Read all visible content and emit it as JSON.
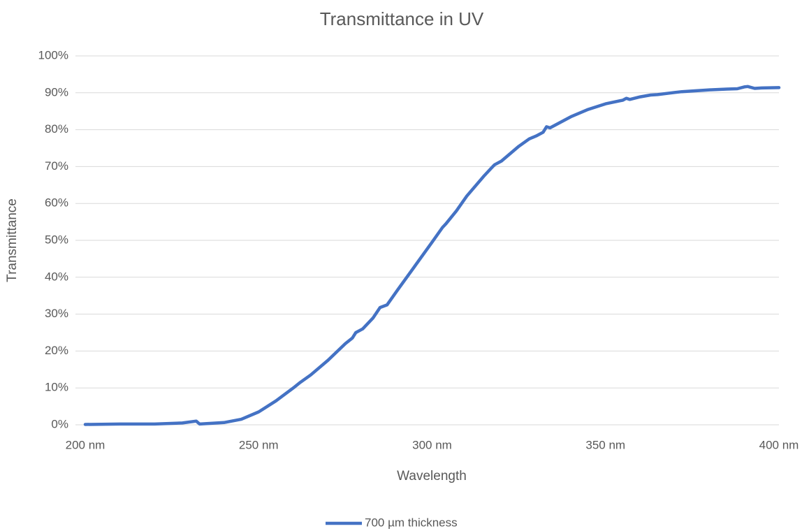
{
  "chart_data": {
    "type": "line",
    "title": "Transmittance in UV",
    "x_label": "Wavelength",
    "y_label": "Transmittance",
    "x": [
      200,
      210,
      220,
      228,
      232,
      233,
      240,
      245,
      250,
      255,
      260,
      262,
      265,
      270,
      275,
      277,
      278,
      280,
      283,
      285,
      287,
      290,
      295,
      300,
      303,
      304,
      307,
      310,
      315,
      317,
      318,
      320,
      325,
      328,
      330,
      332,
      333,
      334,
      340,
      345,
      350,
      355,
      356,
      357,
      360,
      363,
      365,
      370,
      372,
      375,
      380,
      385,
      388,
      390,
      391,
      393,
      395,
      400
    ],
    "series": [
      {
        "name": "700 µm thickness",
        "color": "#4472c4",
        "values": [
          0.1,
          0.2,
          0.2,
          0.5,
          1.0,
          0.2,
          0.6,
          1.5,
          3.5,
          6.5,
          10,
          11.5,
          13.5,
          17.5,
          22,
          23.5,
          25,
          26,
          29,
          31.8,
          32.5,
          36.5,
          43,
          49.5,
          53.5,
          54.5,
          58,
          62,
          67.5,
          69.5,
          70.5,
          71.5,
          75.5,
          77.5,
          78.3,
          79.3,
          80.8,
          80.5,
          83.5,
          85.5,
          87,
          88,
          88.5,
          88.2,
          88.9,
          89.4,
          89.5,
          90.1,
          90.3,
          90.5,
          90.8,
          91,
          91.1,
          91.6,
          91.7,
          91.2,
          91.3,
          91.4
        ]
      }
    ],
    "xlim": [
      200,
      400
    ],
    "xticks": [
      {
        "value": 200,
        "label": "200 nm"
      },
      {
        "value": 250,
        "label": "250 nm"
      },
      {
        "value": 300,
        "label": "300 nm"
      },
      {
        "value": 350,
        "label": "350 nm"
      },
      {
        "value": 400,
        "label": "400 nm"
      }
    ],
    "ylim": [
      0,
      100
    ],
    "yticks": [
      {
        "value": 0,
        "label": "0%"
      },
      {
        "value": 10,
        "label": "10%"
      },
      {
        "value": 20,
        "label": "20%"
      },
      {
        "value": 30,
        "label": "30%"
      },
      {
        "value": 40,
        "label": "40%"
      },
      {
        "value": 50,
        "label": "50%"
      },
      {
        "value": 60,
        "label": "60%"
      },
      {
        "value": 70,
        "label": "70%"
      },
      {
        "value": 80,
        "label": "80%"
      },
      {
        "value": 90,
        "label": "90%"
      },
      {
        "value": 100,
        "label": "100%"
      }
    ],
    "grid": true,
    "legend": "bottom"
  }
}
